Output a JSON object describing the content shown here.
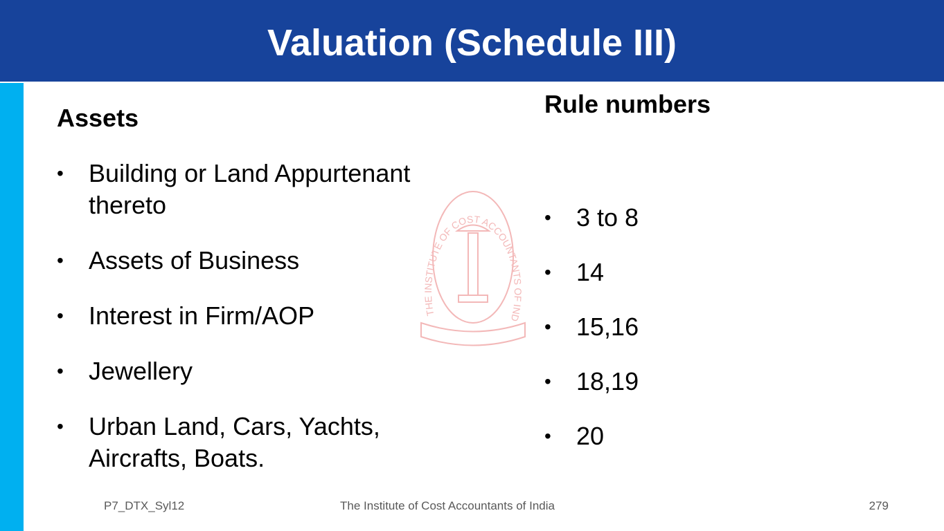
{
  "header": {
    "title": "Valuation (Schedule III)"
  },
  "left": {
    "heading": "Assets",
    "items": [
      "Building or Land Appurtenant thereto",
      "Assets of Business",
      "Interest in Firm/AOP",
      "Jewellery",
      "Urban Land, Cars, Yachts, Aircrafts, Boats."
    ]
  },
  "right": {
    "heading": "Rule numbers",
    "items": [
      "3 to 8",
      "14",
      "15,16",
      "18,19",
      "20"
    ]
  },
  "watermark": {
    "text": "THE INSTITUTE OF COST ACCOUNTANTS OF INDIA"
  },
  "footer": {
    "left": "P7_DTX_Syl12",
    "center": "The Institute of Cost Accountants of India",
    "right": "279"
  }
}
